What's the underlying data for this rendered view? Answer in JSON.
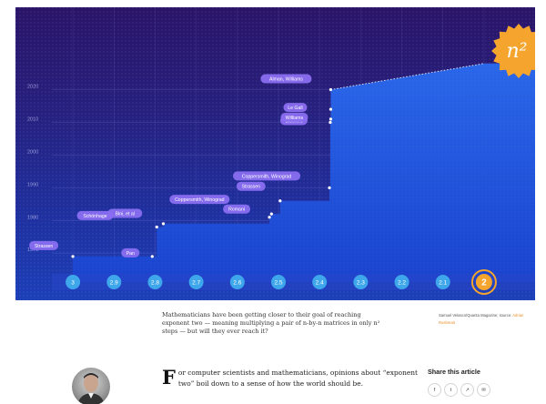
{
  "chart_data": {
    "type": "line",
    "x_ticks": [
      "3",
      "2.9",
      "2.8",
      "2.7",
      "2.6",
      "2.5",
      "2.4",
      "2.3",
      "2.2",
      "2.1"
    ],
    "x_target_label": "2",
    "y_ticks": [
      "1970",
      "1980",
      "1990",
      "2000",
      "2010",
      "2020"
    ],
    "xlim": [
      3.05,
      1.95
    ],
    "ylim": [
      1967,
      2031
    ],
    "badge_text": "n²",
    "series": [
      {
        "values": [
          {
            "x": 3.0,
            "y": 1969
          },
          {
            "x": 2.807,
            "y": 1969
          },
          {
            "x": 2.796,
            "y": 1978
          },
          {
            "x": 2.78,
            "y": 1979
          },
          {
            "x": 2.522,
            "y": 1981
          },
          {
            "x": 2.517,
            "y": 1982
          },
          {
            "x": 2.496,
            "y": 1986
          },
          {
            "x": 2.376,
            "y": 1990
          },
          {
            "x": 2.374,
            "y": 2010
          },
          {
            "x": 2.3729,
            "y": 2011
          },
          {
            "x": 2.3728639,
            "y": 2014
          },
          {
            "x": 2.3728596,
            "y": 2020
          }
        ]
      }
    ],
    "annotations": [
      "Strassen",
      "Pan",
      "Bini, et al",
      "Schönhage",
      "Romani",
      "Coppersmith, Winograd",
      "Strassen",
      "Coppersmith, Winograd",
      "Stothers",
      "Williams",
      "Le Gall",
      "Alman, Williams"
    ]
  },
  "caption": "Mathematicians have been getting closer to their goal of reaching exponent two — meaning multiplying a pair of n-by-n matrices in only n² steps — but will they ever reach it?",
  "credit_prefix": "Samuel Velasco/Quanta Magazine; source:",
  "credit_source": "Adrian Rusbreait",
  "article": {
    "drop_cap": "F",
    "text": "or computer scientists and mathematicians, opinions about “exponent two” boil down to a sense of how the world should be."
  },
  "share": {
    "title": "Share this article",
    "icons": [
      "facebook-icon",
      "twitter-icon",
      "link-icon",
      "email-icon"
    ],
    "glyphs": [
      "f",
      "t",
      "↗",
      "✉"
    ]
  },
  "colors": {
    "accent": "#f5a52d",
    "label_bg": "#8a6ef0",
    "marker_bg": "#3ea6ea"
  }
}
